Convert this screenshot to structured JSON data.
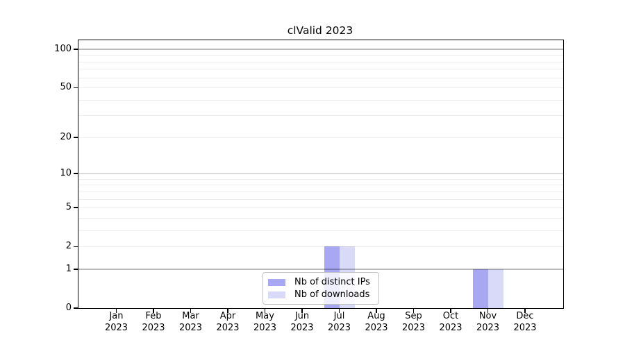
{
  "chart_data": {
    "type": "bar",
    "title": "clValid 2023",
    "categories": [
      "Jan",
      "Feb",
      "Mar",
      "Apr",
      "May",
      "Jun",
      "Jul",
      "Aug",
      "Sep",
      "Oct",
      "Nov",
      "Dec"
    ],
    "year_label": "2023",
    "series": [
      {
        "name": "Nb of distinct IPs",
        "color": "#a8a8f2",
        "values": [
          0,
          0,
          0,
          0,
          0,
          0,
          2,
          0,
          0,
          0,
          1,
          0
        ]
      },
      {
        "name": "Nb of downloads",
        "color": "#d9d9f8",
        "values": [
          0,
          0,
          0,
          0,
          0,
          0,
          2,
          0,
          0,
          0,
          1,
          0
        ]
      }
    ],
    "yscale": "log10(value+1)",
    "ylim": [
      0,
      113
    ],
    "ytick_values": [
      0,
      1,
      2,
      5,
      10,
      20,
      50,
      100
    ],
    "ytick_labels": [
      "0",
      "1",
      "2",
      "5",
      "10",
      "20",
      "50",
      "100"
    ],
    "major_grid_values": [
      1,
      10,
      100
    ],
    "minor_grid_values": [
      2,
      3,
      4,
      5,
      6,
      7,
      8,
      9,
      20,
      30,
      40,
      50,
      60,
      70,
      80,
      90
    ],
    "grid": true,
    "legend_position": "lower center",
    "axis_color": "#000000",
    "major_grid_color": "#bababa",
    "minor_grid_color": "#ebebeb"
  }
}
